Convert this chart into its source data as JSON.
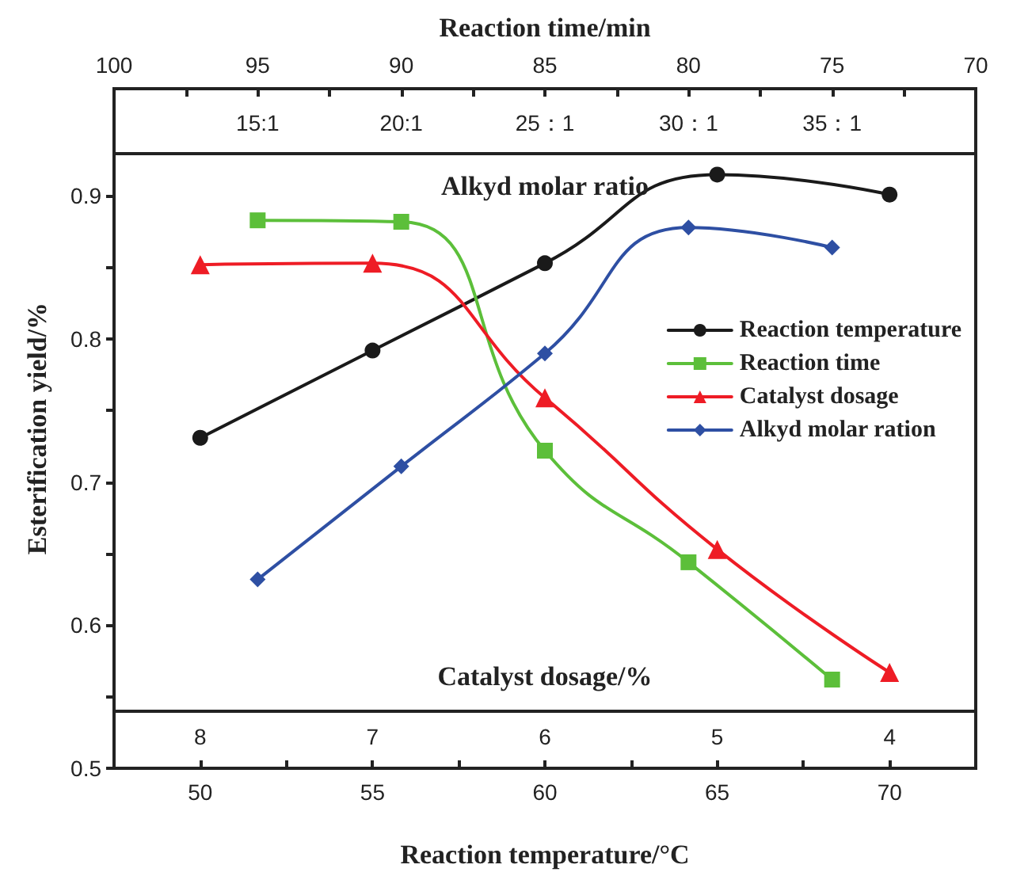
{
  "chart_data": {
    "type": "line",
    "xlabel": "Reaction temperature/°C",
    "ylabel": "Esterification yield/%",
    "x2label": "Reaction time/min",
    "xlim": [
      47.5,
      72.5
    ],
    "xticks": [
      50,
      {
        "value": 52.5,
        "label": null
      },
      55,
      {
        "value": 57.5,
        "label": null
      },
      60,
      {
        "value": 62.5,
        "label": null
      },
      65,
      {
        "value": 67.5,
        "label": null
      },
      70
    ],
    "x2lim": [
      100,
      70
    ],
    "x2ticks": [
      100,
      {
        "value": 97.5,
        "label": null
      },
      95,
      {
        "value": 92.5,
        "label": null
      },
      90,
      {
        "value": 87.5,
        "label": null
      },
      85,
      {
        "value": 82.5,
        "label": null
      },
      80,
      {
        "value": 77.5,
        "label": null
      },
      75,
      {
        "value": 72.5,
        "label": null
      },
      70
    ],
    "ylim": [
      0.5,
      0.975
    ],
    "yticks": [
      0.5,
      {
        "value": 0.55,
        "label": null
      },
      0.6,
      {
        "value": 0.65,
        "label": null
      },
      0.7,
      {
        "value": 0.75,
        "label": null
      },
      0.8,
      {
        "value": 0.85,
        "label": null
      },
      0.9
    ],
    "annotations": [
      "Alkyd molar ratio",
      "15:1",
      "20:1",
      "25：1",
      "30：1",
      "35：1",
      "Catalyst dosage/%",
      "8",
      "7",
      "6",
      "5",
      "4"
    ],
    "ref_lines": [
      {
        "axis": "y",
        "value": 0.93,
        "color": "#222222"
      },
      {
        "axis": "y",
        "value": 0.54,
        "color": "#222222"
      }
    ],
    "grid": false,
    "legend": "right",
    "line_style": "solid",
    "series": [
      {
        "name": "Reaction temperature",
        "color": "#1a1a1a",
        "marker": "circle",
        "x": [
          50,
          55,
          60,
          65,
          70
        ],
        "values": [
          0.731,
          0.792,
          0.853,
          0.915,
          0.901
        ]
      },
      {
        "name": "Reaction time",
        "color": "#5cbf3a",
        "marker": "square",
        "axis": "x2",
        "x": [
          95,
          90,
          85,
          80,
          75
        ],
        "values": [
          0.883,
          0.882,
          0.722,
          0.644,
          0.562
        ]
      },
      {
        "name": "Catalyst dosage",
        "color": "#ee1c25",
        "marker": "triangle",
        "x": [
          50,
          55,
          60,
          65,
          70
        ],
        "values": [
          0.852,
          0.853,
          0.759,
          0.653,
          0.567
        ]
      },
      {
        "name": "Alkyd molar ration",
        "color": "#2e4fa3",
        "marker": "diamond",
        "axis": "x2",
        "x": [
          95,
          90,
          85,
          80,
          75
        ],
        "values": [
          0.632,
          0.711,
          0.79,
          0.878,
          0.864
        ]
      }
    ]
  }
}
